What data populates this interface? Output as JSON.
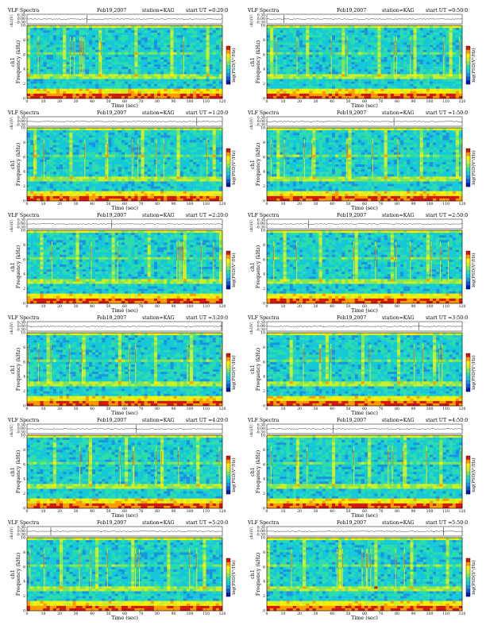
{
  "chart_data": [
    {
      "type": "heatmap",
      "title": "VLF Spectra",
      "date": "Feb19,2007",
      "station": "station=KAG",
      "start": "start UT =0:20:0",
      "xlabel": "Time (sec)",
      "ylabel": "Frequency (kHz)",
      "ylabel2": "ch1",
      "top_ylabel": "ch1(V)",
      "top_yticks": [
        "0.30",
        "0.00",
        "-0.30"
      ],
      "colorbar_label": "log(PSD(V²/Hz)",
      "x_ticks": [
        0,
        10,
        20,
        30,
        40,
        50,
        60,
        70,
        80,
        90,
        100,
        110,
        120
      ],
      "y_ticks": [
        0,
        2,
        4,
        6,
        8,
        10
      ],
      "xlim": [
        0,
        120
      ],
      "ylim": [
        0,
        10
      ]
    },
    {
      "type": "heatmap",
      "title": "VLF Spectra",
      "date": "Feb19,2007",
      "station": "station=KAG",
      "start": "start UT =0:50:0",
      "xlabel": "Time (sec)",
      "ylabel": "Frequency (kHz)",
      "ylabel2": "ch1",
      "top_ylabel": "ch1(V)",
      "top_yticks": [
        "0.30",
        "0.00",
        "-0.30"
      ],
      "colorbar_label": "log(PSD(V²/Hz)",
      "x_ticks": [
        0,
        10,
        20,
        30,
        40,
        50,
        60,
        70,
        80,
        90,
        100,
        110,
        120
      ],
      "y_ticks": [
        0,
        2,
        4,
        6,
        8,
        10
      ],
      "xlim": [
        0,
        120
      ],
      "ylim": [
        0,
        10
      ]
    },
    {
      "type": "heatmap",
      "title": "VLF Spectra",
      "date": "Feb19,2007",
      "station": "station=KAG",
      "start": "start UT =1:20:0",
      "xlabel": "Time (sec)",
      "ylabel": "Frequency (kHz)",
      "ylabel2": "ch1",
      "top_ylabel": "ch1(V)",
      "top_yticks": [
        "0.30",
        "0.00",
        "-0.30"
      ],
      "colorbar_label": "log(PSD(V²/Hz)",
      "x_ticks": [
        0,
        10,
        20,
        30,
        40,
        50,
        60,
        70,
        80,
        90,
        100,
        110,
        120
      ],
      "y_ticks": [
        0,
        2,
        4,
        6,
        8,
        10
      ],
      "xlim": [
        0,
        120
      ],
      "ylim": [
        0,
        10
      ]
    },
    {
      "type": "heatmap",
      "title": "VLF Spectra",
      "date": "Feb19,2007",
      "station": "station=KAG",
      "start": "start UT =1:50:0",
      "xlabel": "Time (sec)",
      "ylabel": "Frequency (kHz)",
      "ylabel2": "ch1",
      "top_ylabel": "ch1(V)",
      "top_yticks": [
        "0.30",
        "0.00",
        "-0.30"
      ],
      "colorbar_label": "log(PSD(V²/Hz)",
      "x_ticks": [
        0,
        10,
        20,
        30,
        40,
        50,
        60,
        70,
        80,
        90,
        100,
        110,
        120
      ],
      "y_ticks": [
        0,
        2,
        4,
        6,
        8,
        10
      ],
      "xlim": [
        0,
        120
      ],
      "ylim": [
        0,
        10
      ]
    },
    {
      "type": "heatmap",
      "title": "VLF Spectra",
      "date": "Feb19,2007",
      "station": "station=KAG",
      "start": "start UT =2:20:0",
      "xlabel": "Time (sec)",
      "ylabel": "Frequency (kHz)",
      "ylabel2": "ch1",
      "top_ylabel": "ch1(V)",
      "top_yticks": [
        "0.30",
        "0.00",
        "-0.30"
      ],
      "colorbar_label": "log(PSD(V²/Hz)",
      "x_ticks": [
        0,
        10,
        20,
        30,
        40,
        50,
        60,
        70,
        80,
        90,
        100,
        110,
        120
      ],
      "y_ticks": [
        0,
        2,
        4,
        6,
        8,
        10
      ],
      "xlim": [
        0,
        120
      ],
      "ylim": [
        0,
        10
      ]
    },
    {
      "type": "heatmap",
      "title": "VLF Spectra",
      "date": "Feb19,2007",
      "station": "station=KAG",
      "start": "start UT =2:50:0",
      "xlabel": "Time (sec)",
      "ylabel": "Frequency (kHz)",
      "ylabel2": "ch1",
      "top_ylabel": "ch1(V)",
      "top_yticks": [
        "0.30",
        "0.00",
        "-0.30"
      ],
      "colorbar_label": "log(PSD(V²/Hz)",
      "x_ticks": [
        0,
        10,
        20,
        30,
        40,
        50,
        60,
        70,
        80,
        90,
        100,
        110,
        120
      ],
      "y_ticks": [
        0,
        2,
        4,
        6,
        8,
        10
      ],
      "xlim": [
        0,
        120
      ],
      "ylim": [
        0,
        10
      ]
    },
    {
      "type": "heatmap",
      "title": "VLF Spectra",
      "date": "Feb19,2007",
      "station": "station=KAG",
      "start": "start UT =3:20:0",
      "xlabel": "Time (sec)",
      "ylabel": "Frequency (kHz)",
      "ylabel2": "ch1",
      "top_ylabel": "ch1(V)",
      "top_yticks": [
        "0.30",
        "0.00",
        "-0.30"
      ],
      "colorbar_label": "log(PSD(V²/Hz)",
      "x_ticks": [
        0,
        10,
        20,
        30,
        40,
        50,
        60,
        70,
        80,
        90,
        100,
        110,
        120
      ],
      "y_ticks": [
        0,
        2,
        4,
        6,
        8,
        10
      ],
      "xlim": [
        0,
        120
      ],
      "ylim": [
        0,
        10
      ]
    },
    {
      "type": "heatmap",
      "title": "VLF Spectra",
      "date": "Feb19,2007",
      "station": "station=KAG",
      "start": "start UT =3:50:0",
      "xlabel": "Time (sec)",
      "ylabel": "Frequency (kHz)",
      "ylabel2": "ch1",
      "top_ylabel": "ch1(V)",
      "top_yticks": [
        "0.30",
        "0.00",
        "-0.30"
      ],
      "colorbar_label": "log(PSD(V²/Hz)",
      "x_ticks": [
        0,
        10,
        20,
        30,
        40,
        50,
        60,
        70,
        80,
        90,
        100,
        110,
        120
      ],
      "y_ticks": [
        0,
        2,
        4,
        6,
        8,
        10
      ],
      "xlim": [
        0,
        120
      ],
      "ylim": [
        0,
        10
      ]
    },
    {
      "type": "heatmap",
      "title": "VLF Spectra",
      "date": "Feb19,2007",
      "station": "station=KAG",
      "start": "start UT =4:20:0",
      "xlabel": "Time (sec)",
      "ylabel": "Frequency (kHz)",
      "ylabel2": "ch1",
      "top_ylabel": "ch1(V)",
      "top_yticks": [
        "0.30",
        "0.00",
        "-0.30"
      ],
      "colorbar_label": "log(PSD(V²/Hz)",
      "x_ticks": [
        0,
        10,
        20,
        30,
        40,
        50,
        60,
        70,
        80,
        90,
        100,
        110,
        120
      ],
      "y_ticks": [
        0,
        2,
        4,
        6,
        8,
        10
      ],
      "xlim": [
        0,
        120
      ],
      "ylim": [
        0,
        10
      ]
    },
    {
      "type": "heatmap",
      "title": "VLF Spectra",
      "date": "Feb19,2007",
      "station": "station=KAG",
      "start": "start UT =4:50:0",
      "xlabel": "Time (sec)",
      "ylabel": "Frequency (kHz)",
      "ylabel2": "ch1",
      "top_ylabel": "ch1(V)",
      "top_yticks": [
        "0.30",
        "0.00",
        "-0.30"
      ],
      "colorbar_label": "log(PSD(V²/Hz)",
      "x_ticks": [
        0,
        10,
        20,
        30,
        40,
        50,
        60,
        70,
        80,
        90,
        100,
        110,
        120
      ],
      "y_ticks": [
        0,
        2,
        4,
        6,
        8,
        10
      ],
      "xlim": [
        0,
        120
      ],
      "ylim": [
        0,
        10
      ]
    },
    {
      "type": "heatmap",
      "title": "VLF Spectra",
      "date": "Feb19,2007",
      "station": "station=KAG",
      "start": "start UT =5:20:0",
      "xlabel": "Time (sec)",
      "ylabel": "Frequency (kHz)",
      "ylabel2": "ch1",
      "top_ylabel": "ch1(V)",
      "top_yticks": [
        "0.30",
        "0.00",
        "-0.30"
      ],
      "colorbar_label": "log(PSD(V²/Hz)",
      "x_ticks": [
        0,
        10,
        20,
        30,
        40,
        50,
        60,
        70,
        80,
        90,
        100,
        110,
        120
      ],
      "y_ticks": [
        0,
        2,
        4,
        6,
        8,
        10
      ],
      "xlim": [
        0,
        120
      ],
      "ylim": [
        0,
        10
      ]
    },
    {
      "type": "heatmap",
      "title": "VLF Spectra",
      "date": "Feb19,2007",
      "station": "station=KAG",
      "start": "start UT =5:50:0",
      "xlabel": "Time (sec)",
      "ylabel": "Frequency (kHz)",
      "ylabel2": "ch1",
      "top_ylabel": "ch1(V)",
      "top_yticks": [
        "0.30",
        "0.00",
        "-0.30"
      ],
      "colorbar_label": "log(PSD(V²/Hz)",
      "x_ticks": [
        0,
        10,
        20,
        30,
        40,
        50,
        60,
        70,
        80,
        90,
        100,
        110,
        120
      ],
      "y_ticks": [
        0,
        2,
        4,
        6,
        8,
        10
      ],
      "xlim": [
        0,
        120
      ],
      "ylim": [
        0,
        10
      ]
    }
  ],
  "colors": {
    "low": "#0019b5",
    "mid": "#15c8d8",
    "high": "#ffee00",
    "peak": "#d21a0c"
  }
}
